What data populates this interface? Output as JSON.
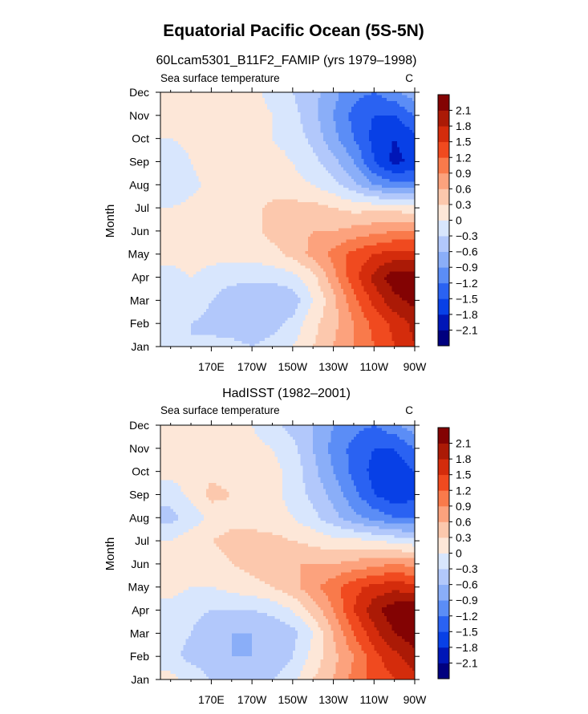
{
  "title": "Equatorial Pacific Ocean (5S-5N)",
  "colors": [
    "#00007f",
    "#0016b7",
    "#0840e6",
    "#2a62f2",
    "#5b8df6",
    "#8aaef8",
    "#b2c8fb",
    "#d8e6fd",
    "#fde7d8",
    "#fcc8ad",
    "#fca27d",
    "#f97a4b",
    "#f04a1f",
    "#d42c0c",
    "#ab1a06",
    "#830303"
  ],
  "levels": [
    -2.1,
    -1.8,
    -1.5,
    -1.2,
    -0.9,
    -0.6,
    -0.3,
    0,
    0.3,
    0.6,
    0.9,
    1.2,
    1.5,
    1.8,
    2.1
  ],
  "chart_data": [
    {
      "type": "heatmap",
      "title": "60Lcam5301_B11F2_FAMIP (yrs 1979–1998)",
      "subtitle": "Sea surface temperature",
      "units": "C",
      "ylabel": "Month",
      "xlabel": "",
      "x_ticks": [
        "170E",
        "170W",
        "150W",
        "130W",
        "110W",
        "90W"
      ],
      "y_ticks": [
        "Jan",
        "Feb",
        "Mar",
        "Apr",
        "May",
        "Jun",
        "Jul",
        "Aug",
        "Sep",
        "Oct",
        "Nov",
        "Dec"
      ],
      "x_lon": [
        150,
        160,
        170,
        180,
        190,
        200,
        210,
        220,
        230,
        240,
        250,
        260,
        270
      ],
      "values": [
        [
          -0.2,
          -0.3,
          -0.2,
          -0.2,
          -0.3,
          -0.2,
          0.0,
          0.3,
          0.6,
          0.9,
          1.2,
          1.5,
          1.8
        ],
        [
          -0.2,
          -0.3,
          -0.4,
          -0.5,
          -0.5,
          -0.4,
          -0.2,
          0.2,
          0.5,
          0.9,
          1.3,
          1.6,
          1.9
        ],
        [
          -0.2,
          -0.1,
          -0.3,
          -0.5,
          -0.6,
          -0.6,
          -0.5,
          0.0,
          0.5,
          1.1,
          1.6,
          2.0,
          2.2
        ],
        [
          -0.1,
          0.0,
          -0.1,
          -0.2,
          -0.2,
          -0.2,
          -0.1,
          0.2,
          0.8,
          1.4,
          1.9,
          2.3,
          2.3
        ],
        [
          0.1,
          0.1,
          0.1,
          0.1,
          0.1,
          0.2,
          0.4,
          0.7,
          1.0,
          1.3,
          1.5,
          1.6,
          1.6
        ],
        [
          0.1,
          0.1,
          0.2,
          0.2,
          0.2,
          0.4,
          0.5,
          0.6,
          0.6,
          0.7,
          0.8,
          0.9,
          0.9
        ],
        [
          0.0,
          0.1,
          0.2,
          0.2,
          0.2,
          0.4,
          0.4,
          0.4,
          0.3,
          0.2,
          0.2,
          0.2,
          0.1
        ],
        [
          -0.3,
          -0.1,
          0.1,
          0.2,
          0.1,
          0.1,
          0.1,
          0.0,
          -0.2,
          -0.5,
          -0.9,
          -1.1,
          -1.1
        ],
        [
          -0.2,
          0.0,
          0.2,
          0.2,
          0.1,
          0.1,
          0.0,
          -0.2,
          -0.5,
          -0.9,
          -1.5,
          -1.9,
          -1.7
        ],
        [
          0.0,
          0.1,
          0.2,
          0.2,
          0.1,
          0.0,
          -0.1,
          -0.4,
          -0.8,
          -1.2,
          -1.6,
          -1.8,
          -1.6
        ],
        [
          0.2,
          0.2,
          0.2,
          0.2,
          0.1,
          0.0,
          -0.2,
          -0.5,
          -0.9,
          -1.3,
          -1.5,
          -1.5,
          -1.2
        ],
        [
          0.2,
          0.2,
          0.2,
          0.2,
          0.1,
          -0.1,
          -0.3,
          -0.5,
          -0.8,
          -1.1,
          -1.2,
          -1.0,
          -0.7
        ]
      ]
    },
    {
      "type": "heatmap",
      "title": "HadISST (1982–2001)",
      "subtitle": "Sea surface temperature",
      "units": "C",
      "ylabel": "Month",
      "xlabel": "",
      "x_ticks": [
        "170E",
        "170W",
        "150W",
        "130W",
        "110W",
        "90W"
      ],
      "y_ticks": [
        "Jan",
        "Feb",
        "Mar",
        "Apr",
        "May",
        "Jun",
        "Jul",
        "Aug",
        "Sep",
        "Oct",
        "Nov",
        "Dec"
      ],
      "x_lon": [
        150,
        160,
        170,
        180,
        190,
        200,
        210,
        220,
        230,
        240,
        250,
        260,
        270
      ],
      "values": [
        [
          0.1,
          -0.1,
          -0.3,
          -0.4,
          -0.4,
          -0.3,
          -0.1,
          0.3,
          0.6,
          1.0,
          1.3,
          1.5,
          1.7
        ],
        [
          -0.2,
          -0.4,
          -0.5,
          -0.6,
          -0.6,
          -0.5,
          -0.3,
          0.1,
          0.5,
          0.9,
          1.4,
          1.7,
          2.0
        ],
        [
          -0.2,
          -0.3,
          -0.5,
          -0.6,
          -0.6,
          -0.6,
          -0.4,
          0.0,
          0.6,
          1.2,
          1.7,
          2.1,
          2.3
        ],
        [
          -0.1,
          -0.2,
          -0.3,
          -0.3,
          -0.3,
          -0.2,
          0.0,
          0.4,
          0.9,
          1.5,
          2.0,
          2.3,
          2.4
        ],
        [
          0.1,
          0.0,
          0.0,
          0.1,
          0.2,
          0.3,
          0.5,
          0.8,
          1.1,
          1.4,
          1.6,
          1.7,
          1.6
        ],
        [
          0.1,
          0.2,
          0.2,
          0.3,
          0.4,
          0.5,
          0.6,
          0.6,
          0.6,
          0.7,
          0.8,
          0.9,
          0.8
        ],
        [
          0.0,
          0.2,
          0.3,
          0.4,
          0.4,
          0.4,
          0.3,
          0.2,
          0.1,
          0.1,
          0.0,
          -0.1,
          -0.2
        ],
        [
          -0.4,
          -0.2,
          0.1,
          0.2,
          0.2,
          0.1,
          0.0,
          -0.2,
          -0.5,
          -0.8,
          -1.0,
          -1.2,
          -1.2
        ],
        [
          -0.2,
          0.1,
          0.4,
          0.3,
          0.2,
          0.1,
          -0.1,
          -0.4,
          -0.7,
          -1.1,
          -1.5,
          -1.7,
          -1.6
        ],
        [
          0.1,
          0.2,
          0.2,
          0.2,
          0.2,
          0.1,
          -0.1,
          -0.5,
          -0.9,
          -1.3,
          -1.6,
          -1.7,
          -1.5
        ],
        [
          0.2,
          0.3,
          0.2,
          0.2,
          0.1,
          0.0,
          -0.2,
          -0.6,
          -1.0,
          -1.3,
          -1.5,
          -1.5,
          -1.2
        ],
        [
          0.3,
          0.3,
          0.2,
          0.1,
          0.0,
          -0.2,
          -0.4,
          -0.6,
          -0.9,
          -1.1,
          -1.2,
          -1.0,
          -0.7
        ]
      ]
    }
  ]
}
